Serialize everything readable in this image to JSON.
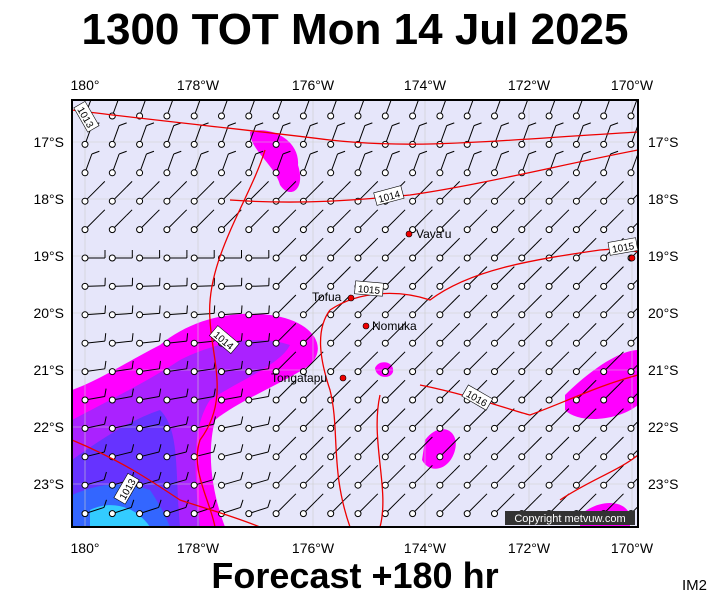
{
  "header": {
    "title": "1300 TOT Mon 14 Jul 2025"
  },
  "longitudes": [
    "180°",
    "178°W",
    "176°W",
    "174°W",
    "172°W",
    "170°W"
  ],
  "latitudes": [
    "17°S",
    "18°S",
    "19°S",
    "20°S",
    "21°S",
    "22°S",
    "23°S"
  ],
  "places": [
    {
      "label": "Vava'u"
    },
    {
      "label": "Tofua"
    },
    {
      "label": "Nomuka"
    },
    {
      "label": "Tongatapu"
    }
  ],
  "isobars": [
    {
      "label": 1013
    },
    {
      "label": 1014
    },
    {
      "label": 1015
    },
    {
      "label": 1015
    },
    {
      "label": 1014
    },
    {
      "label": 1016
    },
    {
      "label": 1013
    }
  ],
  "copyright": "Copyright metvuw.com",
  "footer": {
    "forecast": "Forecast +180 hr",
    "code": "IM2"
  }
}
